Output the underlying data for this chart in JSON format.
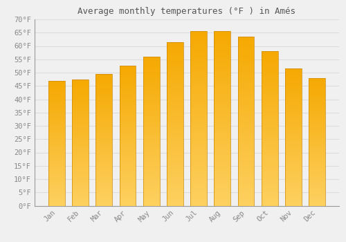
{
  "title": "Average monthly temperatures (°F ) in Amés",
  "months": [
    "Jan",
    "Feb",
    "Mar",
    "Apr",
    "May",
    "Jun",
    "Jul",
    "Aug",
    "Sep",
    "Oct",
    "Nov",
    "Dec"
  ],
  "values": [
    47.0,
    47.5,
    49.5,
    52.5,
    56.0,
    61.5,
    65.5,
    65.5,
    63.5,
    58.0,
    51.5,
    48.0
  ],
  "bar_color_dark": "#F5A800",
  "bar_color_light": "#FDD060",
  "ylim": [
    0,
    70
  ],
  "yticks": [
    0,
    5,
    10,
    15,
    20,
    25,
    30,
    35,
    40,
    45,
    50,
    55,
    60,
    65,
    70
  ],
  "ytick_labels": [
    "0°F",
    "5°F",
    "10°F",
    "15°F",
    "20°F",
    "25°F",
    "30°F",
    "35°F",
    "40°F",
    "45°F",
    "50°F",
    "55°F",
    "60°F",
    "65°F",
    "70°F"
  ],
  "bg_color": "#F0F0F0",
  "grid_color": "#DDDDDD",
  "title_fontsize": 9,
  "tick_fontsize": 7.5,
  "bar_width": 0.7,
  "left_spine_color": "#999999"
}
